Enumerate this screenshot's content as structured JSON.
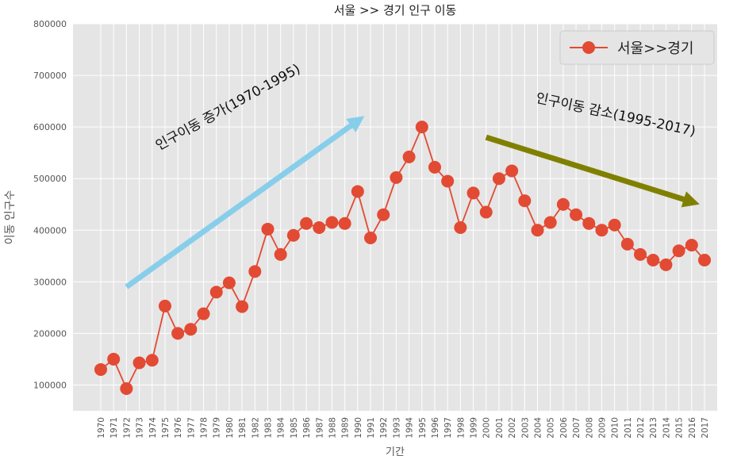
{
  "chart_data": {
    "type": "line",
    "title": "서울 >> 경기 인구 이동",
    "xlabel": "기간",
    "ylabel": "이동 인구수",
    "ylim": [
      50000,
      800000
    ],
    "yticks": [
      100000,
      200000,
      300000,
      400000,
      500000,
      600000,
      700000,
      800000
    ],
    "grid": true,
    "legend_position": "top-right",
    "categories": [
      "1970",
      "1971",
      "1972",
      "1973",
      "1974",
      "1975",
      "1976",
      "1977",
      "1978",
      "1979",
      "1980",
      "1981",
      "1982",
      "1983",
      "1984",
      "1985",
      "1986",
      "1987",
      "1988",
      "1989",
      "1990",
      "1991",
      "1992",
      "1993",
      "1994",
      "1995",
      "1996",
      "1997",
      "1998",
      "1999",
      "2000",
      "2001",
      "2002",
      "2003",
      "2004",
      "2005",
      "2006",
      "2007",
      "2008",
      "2009",
      "2010",
      "2011",
      "2012",
      "2013",
      "2014",
      "2015",
      "2016",
      "2017"
    ],
    "series": [
      {
        "name": "서울>>경기",
        "color": "#E24A33",
        "values": [
          130000,
          150000,
          93000,
          143000,
          148000,
          253000,
          200000,
          208000,
          238000,
          280000,
          298000,
          252000,
          320000,
          402000,
          353000,
          390000,
          413000,
          405000,
          415000,
          413000,
          475000,
          385000,
          430000,
          502000,
          542000,
          600000,
          522000,
          495000,
          405000,
          472000,
          435000,
          500000,
          515000,
          457000,
          400000,
          415000,
          450000,
          430000,
          413000,
          400000,
          410000,
          373000,
          353000,
          342000,
          333000,
          360000,
          371000,
          342000
        ]
      }
    ],
    "annotations": [
      {
        "text": "인구이동 증가(1970-1995)",
        "arrow_color": "#87CEEB",
        "arrow_from": [
          "1972",
          290000
        ],
        "arrow_to": [
          "1990",
          612000
        ]
      },
      {
        "text": "인구이동 감소(1995-2017)",
        "arrow_color": "#808000",
        "arrow_from": [
          "2000",
          580000
        ],
        "arrow_to": [
          "2016",
          455000
        ]
      }
    ]
  }
}
